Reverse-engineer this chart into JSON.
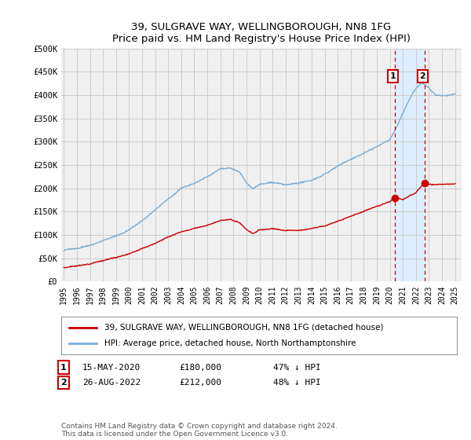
{
  "title": "39, SULGRAVE WAY, WELLINGBOROUGH, NN8 1FG",
  "subtitle": "Price paid vs. HM Land Registry's House Price Index (HPI)",
  "ylabel_ticks": [
    "£0",
    "£50K",
    "£100K",
    "£150K",
    "£200K",
    "£250K",
    "£300K",
    "£350K",
    "£400K",
    "£450K",
    "£500K"
  ],
  "ytick_values": [
    0,
    50000,
    100000,
    150000,
    200000,
    250000,
    300000,
    350000,
    400000,
    450000,
    500000
  ],
  "ylim": [
    0,
    500000
  ],
  "xlim_start": 1994.8,
  "xlim_end": 2025.5,
  "hpi_color": "#7aaed6",
  "price_color": "#CC0000",
  "shade_color": "#ddeeff",
  "background_color": "#f0f0f0",
  "grid_color": "#cccccc",
  "legend_label_price": "39, SULGRAVE WAY, WELLINGBOROUGH, NN8 1FG (detached house)",
  "legend_label_hpi": "HPI: Average price, detached house, North Northamptonshire",
  "transaction1_label": "1",
  "transaction1_date": "15-MAY-2020",
  "transaction1_price": "£180,000",
  "transaction1_hpi": "47% ↓ HPI",
  "transaction2_label": "2",
  "transaction2_date": "26-AUG-2022",
  "transaction2_price": "£212,000",
  "transaction2_hpi": "48% ↓ HPI",
  "footer": "Contains HM Land Registry data © Crown copyright and database right 2024.\nThis data is licensed under the Open Government Licence v3.0.",
  "transaction1_x": 2020.37,
  "transaction2_x": 2022.65,
  "transaction1_y": 180000,
  "transaction2_y": 212000,
  "hpi_knots_x": [
    1995.0,
    1996.0,
    1997.0,
    1998.0,
    1999.0,
    2000.0,
    2001.0,
    2002.0,
    2003.0,
    2004.0,
    2005.0,
    2006.0,
    2007.0,
    2007.8,
    2008.5,
    2009.0,
    2009.5,
    2010.0,
    2011.0,
    2012.0,
    2013.0,
    2014.0,
    2015.0,
    2016.0,
    2017.0,
    2018.0,
    2019.0,
    2020.0,
    2020.5,
    2021.0,
    2021.5,
    2022.0,
    2022.5,
    2023.0,
    2023.5,
    2024.0,
    2025.0
  ],
  "hpi_knots_y": [
    67000,
    72000,
    80000,
    90000,
    100000,
    113000,
    133000,
    155000,
    178000,
    200000,
    210000,
    225000,
    242000,
    243000,
    232000,
    210000,
    198000,
    207000,
    210000,
    205000,
    207000,
    215000,
    228000,
    245000,
    262000,
    276000,
    290000,
    305000,
    330000,
    360000,
    390000,
    415000,
    425000,
    415000,
    400000,
    398000,
    402000
  ],
  "price_knots_x": [
    1995.0,
    1996.0,
    1997.0,
    1998.0,
    1999.0,
    2000.0,
    2001.0,
    2002.0,
    2003.0,
    2004.0,
    2005.0,
    2006.0,
    2007.0,
    2007.8,
    2008.5,
    2009.0,
    2009.5,
    2010.0,
    2011.0,
    2012.0,
    2013.0,
    2014.0,
    2015.0,
    2016.0,
    2017.0,
    2018.0,
    2019.0,
    2020.0,
    2020.37,
    2021.0,
    2022.0,
    2022.65,
    2023.0,
    2024.0,
    2025.0
  ],
  "price_knots_y": [
    30000,
    33000,
    37000,
    43000,
    50000,
    58000,
    70000,
    82000,
    95000,
    105000,
    112000,
    118000,
    128000,
    130000,
    122000,
    108000,
    100000,
    108000,
    112000,
    108000,
    108000,
    112000,
    118000,
    128000,
    138000,
    148000,
    160000,
    170000,
    180000,
    175000,
    190000,
    212000,
    208000,
    208000,
    210000
  ]
}
